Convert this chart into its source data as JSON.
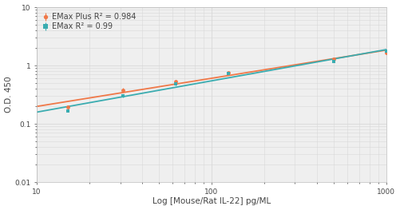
{
  "xlabel": "Log [Mouse/Rat IL-22] pg/ML",
  "ylabel": "O.D. 450",
  "xlim": [
    10,
    1000
  ],
  "ylim": [
    0.01,
    10
  ],
  "background_color": "#ffffff",
  "plot_bg_color": "#efefef",
  "grid_color": "#d8d8d8",
  "emax_plus": {
    "label": "EMax Plus R² = 0.984",
    "color": "#f07848",
    "x": [
      15,
      31.25,
      62.5,
      125,
      500,
      1000
    ],
    "y": [
      0.195,
      0.38,
      0.54,
      0.76,
      1.3,
      1.65
    ],
    "yerr": [
      0.005,
      0.04,
      0.01,
      0.01,
      0.01,
      0.01
    ]
  },
  "emax": {
    "label": "EMax R² = 0.99",
    "color": "#3aacb0",
    "x": [
      15,
      31.25,
      62.5,
      125,
      500,
      1000
    ],
    "y": [
      0.165,
      0.3,
      0.49,
      0.72,
      1.18,
      1.78
    ],
    "yerr": [
      0.005,
      0.015,
      0.04,
      0.01,
      0.01,
      0.01
    ]
  },
  "yticks": [
    0.01,
    0.1,
    1,
    10
  ],
  "ytick_labels": [
    "0.01",
    "0.1",
    "1",
    "10"
  ],
  "xticks": [
    10,
    100,
    1000
  ],
  "xtick_labels": [
    "10",
    "100",
    "1000"
  ]
}
